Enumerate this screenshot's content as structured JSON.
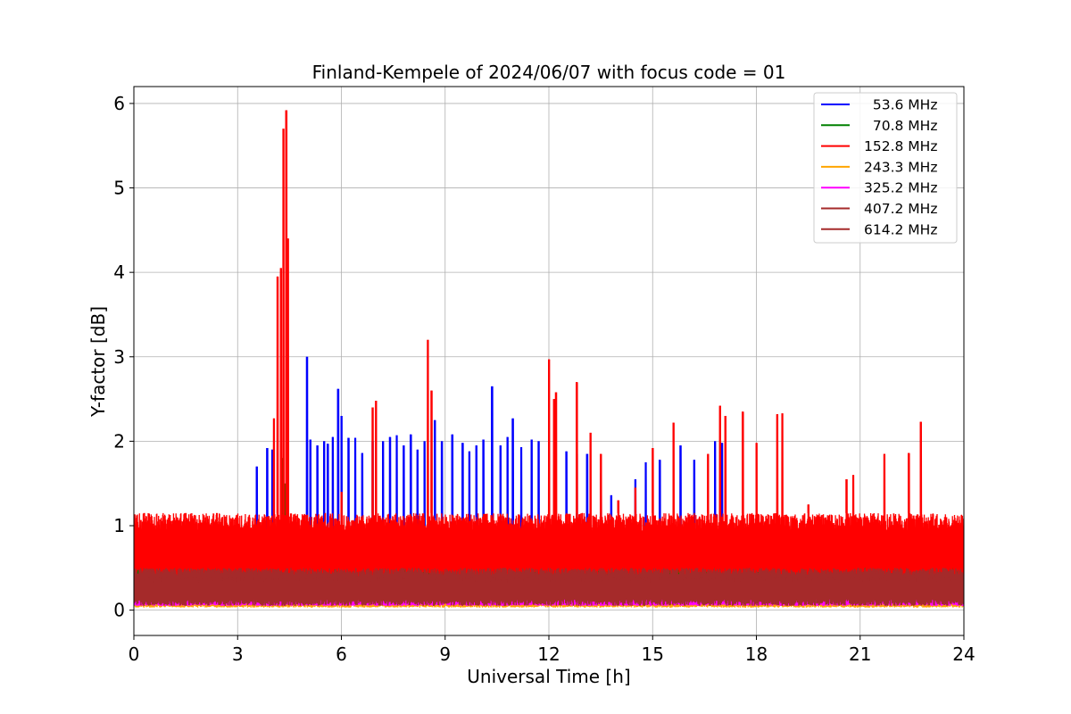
{
  "chart_data": {
    "type": "line",
    "title": "Finland-Kempele of 2024/06/07 with focus code = 01",
    "xlabel": "Universal Time [h]",
    "ylabel": "Y-factor [dB]",
    "xlim": [
      0,
      24
    ],
    "ylim": [
      -0.3,
      6.2
    ],
    "xticks": [
      0,
      3,
      6,
      9,
      12,
      15,
      18,
      21,
      24
    ],
    "yticks": [
      0,
      1,
      2,
      3,
      4,
      5,
      6
    ],
    "grid": true,
    "legend_position": "top-right",
    "series": [
      {
        "name": "  53.6 MHz",
        "color": "#0000ff",
        "band": [
          0.3,
          0.85
        ],
        "spikes": [
          [
            3.55,
            1.7
          ],
          [
            3.85,
            1.92
          ],
          [
            4.0,
            1.9
          ],
          [
            5.0,
            3.0
          ],
          [
            5.1,
            2.02
          ],
          [
            5.3,
            1.95
          ],
          [
            5.5,
            2.0
          ],
          [
            5.6,
            1.97
          ],
          [
            5.75,
            2.05
          ],
          [
            5.9,
            2.62
          ],
          [
            6.0,
            2.3
          ],
          [
            6.2,
            2.04
          ],
          [
            6.4,
            2.04
          ],
          [
            6.6,
            1.86
          ],
          [
            6.9,
            2.0
          ],
          [
            7.2,
            2.0
          ],
          [
            7.4,
            2.05
          ],
          [
            7.6,
            2.07
          ],
          [
            7.8,
            1.95
          ],
          [
            8.0,
            2.08
          ],
          [
            8.2,
            1.9
          ],
          [
            8.4,
            2.0
          ],
          [
            8.7,
            2.25
          ],
          [
            8.9,
            2.0
          ],
          [
            9.2,
            2.08
          ],
          [
            9.5,
            1.98
          ],
          [
            9.7,
            1.88
          ],
          [
            9.9,
            1.95
          ],
          [
            10.1,
            2.02
          ],
          [
            10.35,
            2.65
          ],
          [
            10.6,
            1.95
          ],
          [
            10.8,
            2.05
          ],
          [
            10.95,
            2.27
          ],
          [
            11.2,
            1.93
          ],
          [
            11.5,
            2.02
          ],
          [
            11.7,
            2.0
          ],
          [
            12.5,
            1.88
          ],
          [
            12.8,
            1.85
          ],
          [
            13.1,
            1.85
          ],
          [
            13.5,
            1.62
          ],
          [
            13.8,
            1.36
          ],
          [
            14.5,
            1.55
          ],
          [
            14.8,
            1.75
          ],
          [
            15.2,
            1.78
          ],
          [
            15.8,
            1.95
          ],
          [
            16.2,
            1.78
          ],
          [
            16.8,
            2.0
          ],
          [
            17.0,
            1.98
          ],
          [
            18.6,
            0.6
          ]
        ]
      },
      {
        "name": "  70.8 MHz",
        "color": "#008000",
        "band": [
          0.3,
          0.6
        ],
        "spikes": [
          [
            4.1,
            0.68
          ],
          [
            4.3,
            1.8
          ],
          [
            4.35,
            1.5
          ],
          [
            12.0,
            1.2
          ],
          [
            18.6,
            0.75
          ]
        ]
      },
      {
        "name": "152.8 MHz",
        "color": "#ff0000",
        "band": [
          0.3,
          1.15
        ],
        "spikes": [
          [
            0.3,
            0.93
          ],
          [
            1.5,
            1.0
          ],
          [
            2.4,
            1.05
          ],
          [
            4.05,
            2.27
          ],
          [
            4.15,
            3.95
          ],
          [
            4.25,
            4.05
          ],
          [
            4.32,
            5.7
          ],
          [
            4.4,
            5.92
          ],
          [
            4.45,
            4.4
          ],
          [
            6.0,
            1.4
          ],
          [
            6.9,
            2.4
          ],
          [
            7.0,
            2.48
          ],
          [
            8.5,
            3.2
          ],
          [
            8.6,
            2.6
          ],
          [
            12.0,
            2.97
          ],
          [
            12.15,
            2.5
          ],
          [
            12.2,
            2.58
          ],
          [
            12.8,
            2.7
          ],
          [
            13.2,
            2.1
          ],
          [
            13.5,
            1.85
          ],
          [
            14.0,
            1.3
          ],
          [
            14.5,
            1.45
          ],
          [
            15.0,
            1.92
          ],
          [
            15.6,
            2.22
          ],
          [
            16.6,
            1.85
          ],
          [
            16.95,
            2.42
          ],
          [
            17.1,
            2.3
          ],
          [
            17.6,
            2.35
          ],
          [
            18.0,
            1.98
          ],
          [
            18.6,
            2.32
          ],
          [
            18.75,
            2.33
          ],
          [
            19.5,
            1.25
          ],
          [
            20.6,
            1.55
          ],
          [
            20.8,
            1.6
          ],
          [
            21.7,
            1.85
          ],
          [
            22.4,
            1.86
          ],
          [
            22.75,
            2.23
          ]
        ]
      },
      {
        "name": "243.3 MHz",
        "color": "#ffa500",
        "band": [
          0.03,
          0.15
        ],
        "spikes": []
      },
      {
        "name": "325.2 MHz",
        "color": "#ff00ff",
        "band": [
          0.05,
          0.18
        ],
        "spikes": []
      },
      {
        "name": "407.2 MHz",
        "color": "#a52a2a",
        "band": [
          0.1,
          0.5
        ],
        "spikes": []
      },
      {
        "name": "614.2 MHz",
        "color": "#a52a2a",
        "band": [
          0.05,
          0.4
        ],
        "spikes": []
      }
    ]
  }
}
